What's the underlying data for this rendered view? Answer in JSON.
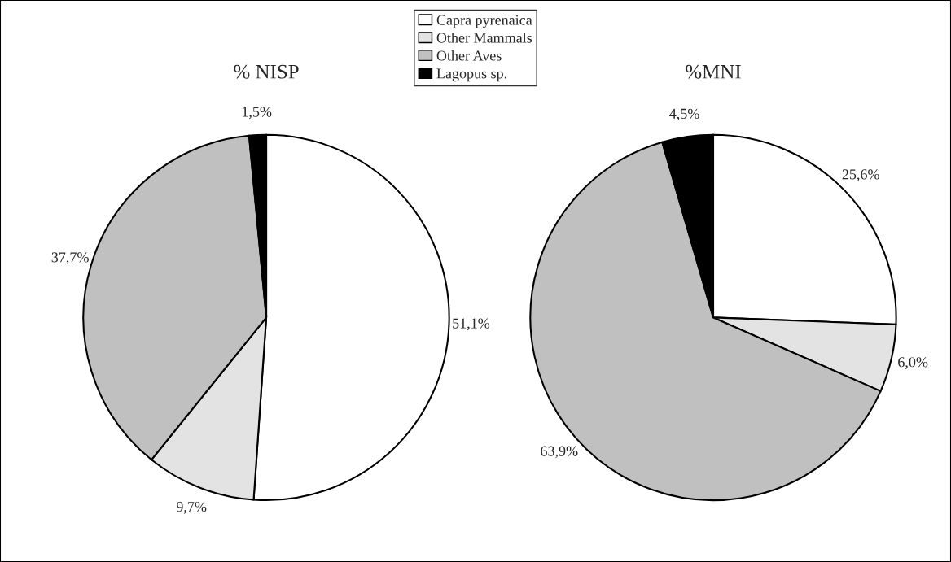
{
  "chart_data": [
    {
      "type": "pie",
      "title": "% NISP",
      "categories": [
        "Capra pyrenaica",
        "Other Mammals",
        "Other Aves",
        "Lagopus sp."
      ],
      "values": [
        51.1,
        9.7,
        37.7,
        1.5
      ],
      "colors": [
        "#ffffff",
        "#e3e3e3",
        "#c0c0c0",
        "#000000"
      ],
      "value_labels": [
        "51,1%",
        "9,7%",
        "37,7%",
        "1,5%"
      ],
      "legend": "top"
    },
    {
      "type": "pie",
      "title": "%MNI",
      "values": [
        25.6,
        6.0,
        63.9,
        4.5
      ],
      "colors": [
        "#ffffff",
        "#e3e3e3",
        "#c0c0c0",
        "#000000"
      ],
      "value_labels": [
        "25,6%",
        "6,0%",
        "63,9%",
        "4,5%"
      ]
    }
  ]
}
